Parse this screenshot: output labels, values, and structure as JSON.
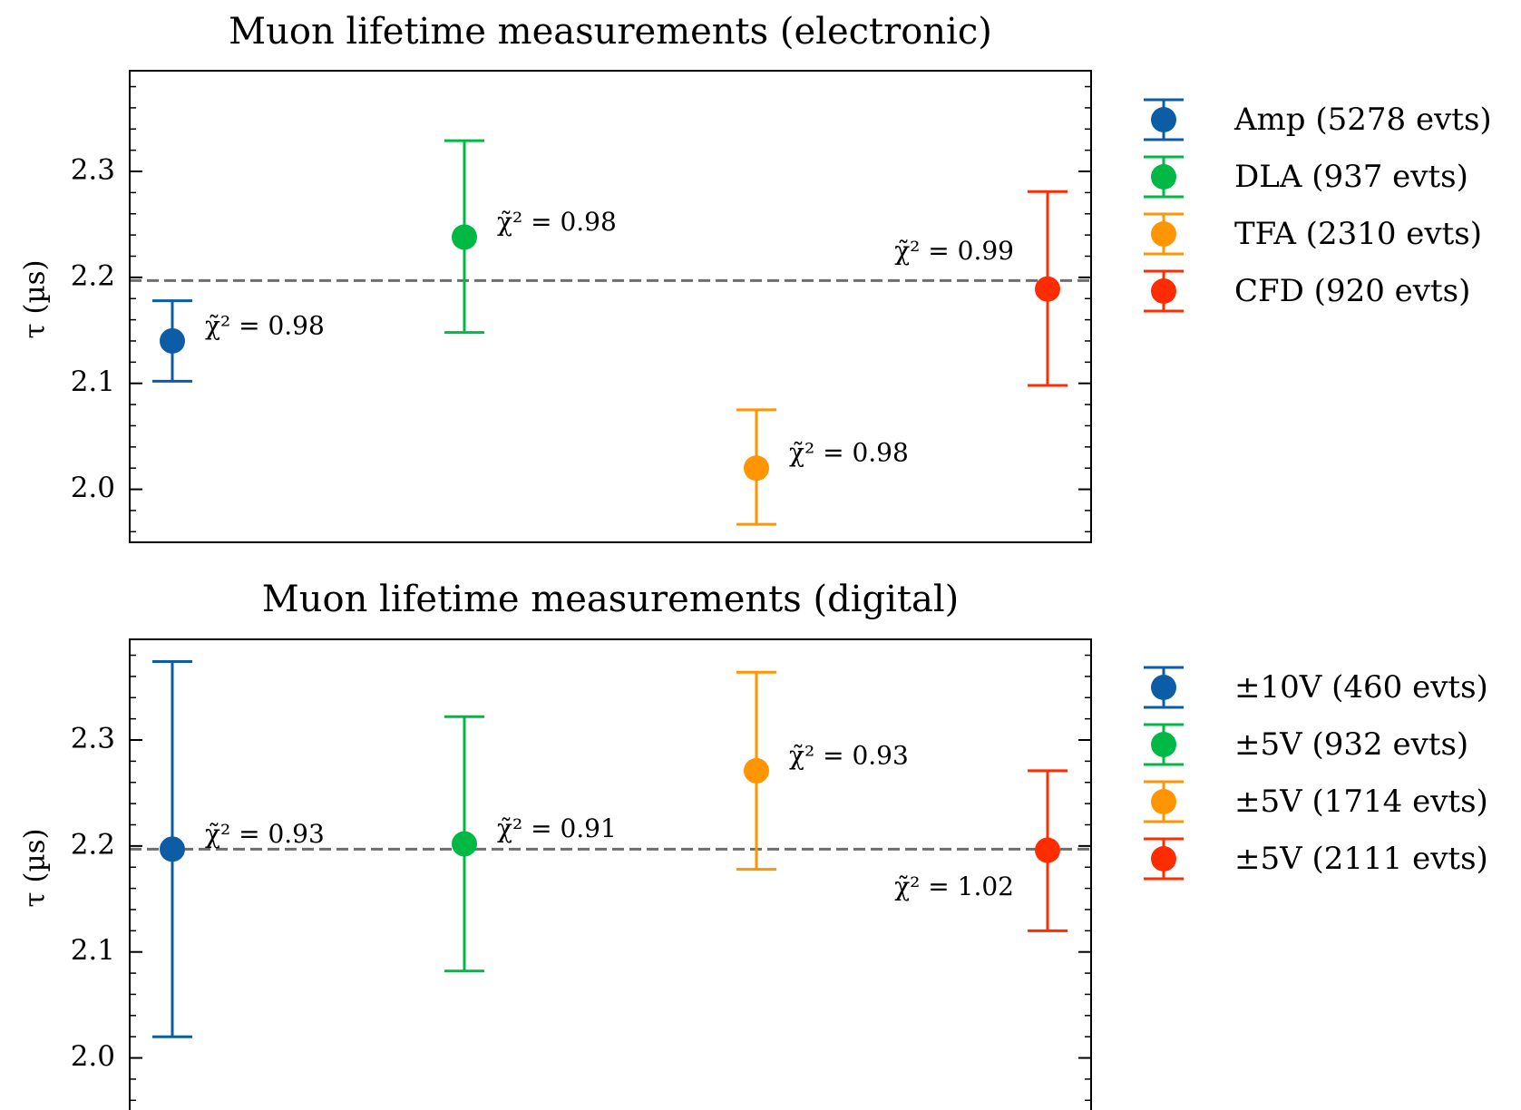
{
  "chart_data": [
    {
      "type": "scatter",
      "title": "Muon lifetime measurements (electronic)",
      "ylabel": "τ (µs)",
      "ylim": [
        1.95,
        2.395
      ],
      "yticks": [
        2.0,
        2.1,
        2.2,
        2.3
      ],
      "ytick_labels": [
        "2.0",
        "2.1",
        "2.2",
        "2.3"
      ],
      "reference_line": 2.197,
      "grid": false,
      "legend_position": "outside-right",
      "series": [
        {
          "name": "Amp (5278 evts)",
          "x": 0,
          "y": 2.14,
          "err_low": 2.102,
          "err_high": 2.178,
          "annotation": "χ̃² = 0.98",
          "annotation_side": "above-right",
          "color": "#0C5DA5"
        },
        {
          "name": "DLA (937 evts)",
          "x": 1,
          "y": 2.238,
          "err_low": 2.148,
          "err_high": 2.329,
          "annotation": "χ̃² = 0.98",
          "annotation_side": "above-right",
          "color": "#00B945"
        },
        {
          "name": "TFA (2310 evts)",
          "x": 2,
          "y": 2.02,
          "err_low": 1.967,
          "err_high": 2.075,
          "annotation": "χ̃² = 0.98",
          "annotation_side": "above-right",
          "color": "#FF9500"
        },
        {
          "name": "CFD (920 evts)",
          "x": 3,
          "y": 2.189,
          "err_low": 2.098,
          "err_high": 2.281,
          "annotation": "χ̃² = 0.99",
          "annotation_side": "above-left",
          "color": "#FF2C00"
        }
      ]
    },
    {
      "type": "scatter",
      "title": "Muon lifetime measurements (digital)",
      "ylabel": "τ (µs)",
      "ylim": [
        1.95,
        2.395
      ],
      "yticks": [
        2.0,
        2.1,
        2.2,
        2.3
      ],
      "ytick_labels": [
        "2.0",
        "2.1",
        "2.2",
        "2.3"
      ],
      "reference_line": 2.197,
      "grid": false,
      "legend_position": "outside-right",
      "series": [
        {
          "name": "±10V (460 evts)",
          "x": 0,
          "y": 2.197,
          "err_low": 2.02,
          "err_high": 2.374,
          "annotation": "χ̃² = 0.93",
          "annotation_side": "above-right",
          "color": "#0C5DA5"
        },
        {
          "name": "±5V (932 evts)",
          "x": 1,
          "y": 2.202,
          "err_low": 2.082,
          "err_high": 2.322,
          "annotation": "χ̃² = 0.91",
          "annotation_side": "above-right",
          "color": "#00B945"
        },
        {
          "name": "±5V (1714 evts)",
          "x": 2,
          "y": 2.271,
          "err_low": 2.178,
          "err_high": 2.364,
          "annotation": "χ̃² = 0.93",
          "annotation_side": "above-right",
          "color": "#FF9500"
        },
        {
          "name": "±5V (2111 evts)",
          "x": 3,
          "y": 2.196,
          "err_low": 2.12,
          "err_high": 2.271,
          "annotation": "χ̃² = 1.02",
          "annotation_side": "below-left",
          "color": "#FF2C00"
        }
      ]
    }
  ]
}
